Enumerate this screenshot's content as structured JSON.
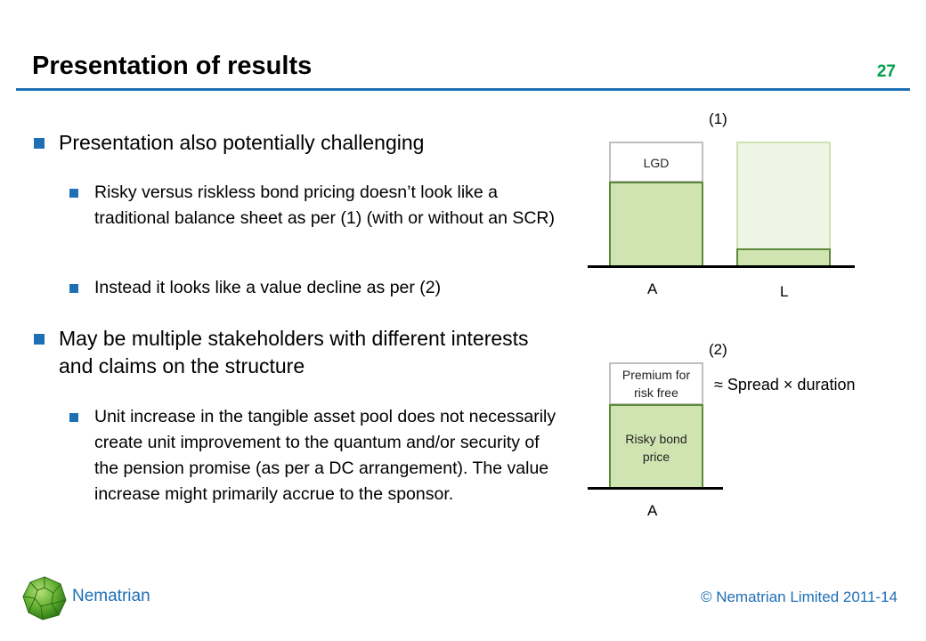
{
  "header": {
    "title": "Presentation of results",
    "slide_number": "27"
  },
  "content": {
    "bullets": [
      {
        "text": "Presentation also potentially challenging",
        "sub": [
          "Risky versus riskless bond pricing doesn’t look like a traditional balance sheet as per (1) (with or without an SCR)",
          "Instead it looks like a value decline as per (2)"
        ]
      },
      {
        "text": "May be multiple stakeholders with different interests and claims on the structure",
        "sub": [
          "Unit increase in the tangible asset pool does not necessarily create unit improvement to the quantum and/or security of the pension promise (as per a DC arrangement). The value increase might primarily accrue to the sponsor."
        ]
      }
    ]
  },
  "diagram1": {
    "label": "(1)",
    "lgd_label": "LGD",
    "asset_label": "A",
    "liability_label": "L"
  },
  "diagram2": {
    "label": "(2)",
    "premium_line1": "Premium for",
    "premium_line2": "risk free",
    "risky_line1": "Risky bond",
    "risky_line2": "price",
    "asset_label": "A",
    "approx_text": "≈ Spread × duration"
  },
  "footer": {
    "brand": "Nematrian",
    "copyright": "© Nematrian Limited 2011-14"
  },
  "colors": {
    "accent_blue": "#1f6fb5",
    "slide_number_green": "#00a14b",
    "bar_green": "#d0e4b2",
    "bar_border": "#5d8a3a"
  }
}
